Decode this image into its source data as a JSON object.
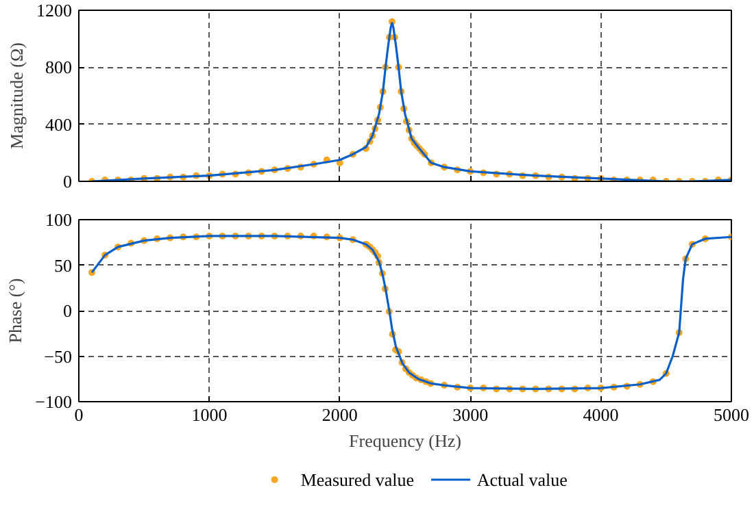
{
  "chart_data": [
    {
      "type": "scatter",
      "ylabel": "Magnitude (Ω)",
      "xlim": [
        0,
        5000
      ],
      "ylim": [
        0,
        1200
      ],
      "xticks": [
        0,
        1000,
        2000,
        3000,
        4000,
        5000
      ],
      "yticks": [
        0,
        400,
        800,
        1200
      ],
      "grid": true,
      "tick_labels": "y",
      "series": [
        {
          "marker": "circle",
          "color": "#f5a623",
          "x": [
            100,
            200,
            300,
            400,
            500,
            600,
            700,
            800,
            900,
            1000,
            1100,
            1200,
            1300,
            1400,
            1500,
            1600,
            1700,
            1800,
            1900,
            2000,
            2100,
            2200,
            2230,
            2250,
            2270,
            2290,
            2310,
            2330,
            2350,
            2380,
            2400,
            2420,
            2450,
            2470,
            2490,
            2510,
            2530,
            2550,
            2570,
            2590,
            2610,
            2630,
            2650,
            2700,
            2800,
            2900,
            3000,
            3100,
            3200,
            3300,
            3400,
            3500,
            3600,
            3700,
            3800,
            3900,
            4000,
            4100,
            4200,
            4300,
            4400,
            4500,
            4600,
            4700,
            4800,
            4900,
            5000
          ],
          "values": [
            0,
            10,
            10,
            10,
            20,
            20,
            30,
            30,
            40,
            40,
            50,
            50,
            60,
            70,
            80,
            90,
            100,
            120,
            150,
            130,
            190,
            230,
            280,
            320,
            370,
            430,
            520,
            630,
            800,
            1010,
            1120,
            1010,
            800,
            630,
            510,
            420,
            360,
            300,
            270,
            250,
            230,
            210,
            190,
            130,
            100,
            80,
            70,
            60,
            50,
            50,
            40,
            40,
            30,
            30,
            20,
            20,
            20,
            10,
            10,
            10,
            10,
            0,
            0,
            0,
            0,
            10,
            10
          ]
        },
        {
          "type": "line",
          "marker": "none",
          "color": "#0a5fc8",
          "x": [
            100,
            500,
            1000,
            1500,
            1800,
            2000,
            2100,
            2200,
            2250,
            2300,
            2330,
            2350,
            2370,
            2390,
            2400,
            2410,
            2430,
            2450,
            2470,
            2500,
            2550,
            2600,
            2700,
            2800,
            3000,
            3500,
            4000,
            4500,
            4700,
            5000
          ],
          "values": [
            0,
            20,
            40,
            80,
            120,
            150,
            190,
            240,
            320,
            470,
            630,
            800,
            950,
            1080,
            1110,
            1080,
            950,
            800,
            630,
            470,
            300,
            240,
            130,
            100,
            70,
            40,
            20,
            0,
            0,
            10
          ]
        }
      ]
    },
    {
      "type": "scatter",
      "xlabel": "Frequency (Hz)",
      "ylabel": "Phase (°)",
      "xlim": [
        0,
        5000
      ],
      "ylim": [
        -100,
        100
      ],
      "xticks": [
        0,
        1000,
        2000,
        3000,
        4000,
        5000
      ],
      "yticks": [
        {
          "value": -100,
          "label": "−100"
        },
        {
          "value": -50,
          "label": "−50"
        },
        0,
        50,
        100
      ],
      "grid": true,
      "legend": "bottom",
      "series": [
        {
          "name": "Measured value",
          "marker": "circle",
          "color": "#f5a623",
          "x": [
            100,
            200,
            300,
            400,
            500,
            600,
            700,
            800,
            900,
            1000,
            1100,
            1200,
            1300,
            1400,
            1500,
            1600,
            1700,
            1800,
            1900,
            2000,
            2100,
            2200,
            2210,
            2230,
            2250,
            2270,
            2290,
            2300,
            2326,
            2347,
            2378,
            2403,
            2427,
            2450,
            2476,
            2505,
            2531,
            2557,
            2586,
            2622,
            2659,
            2695,
            2800,
            2900,
            3000,
            3100,
            3200,
            3300,
            3400,
            3500,
            3600,
            3700,
            3800,
            3900,
            4000,
            4100,
            4200,
            4300,
            4400,
            4500,
            4600,
            4650,
            4700,
            4800,
            5000
          ],
          "values": [
            42,
            61,
            70,
            74,
            77,
            79,
            80,
            81,
            81,
            82,
            82,
            82,
            82,
            82,
            82,
            82,
            82,
            82,
            81,
            80,
            78,
            73,
            72,
            70,
            67,
            64,
            60,
            53,
            41,
            24,
            -1,
            -26,
            -43,
            -45,
            -57,
            -64,
            -68,
            -71,
            -74,
            -76,
            -78,
            -80,
            -82,
            -84,
            -85,
            -85,
            -86,
            -86,
            -86,
            -86,
            -86,
            -86,
            -86,
            -85,
            -85,
            -84,
            -83,
            -81,
            -78,
            -69,
            -24,
            57,
            73,
            79,
            81
          ]
        },
        {
          "type": "line",
          "marker": "none",
          "name": "Actual value",
          "color": "#0a5fc8",
          "x": [
            100,
            200,
            300,
            500,
            700,
            1000,
            1500,
            2000,
            2100,
            2200,
            2250,
            2300,
            2330,
            2350,
            2380,
            2400,
            2430,
            2450,
            2480,
            2530,
            2600,
            2700,
            2800,
            3000,
            3500,
            4000,
            4300,
            4450,
            4500,
            4550,
            4600,
            4630,
            4650,
            4700,
            4800,
            5000
          ],
          "values": [
            42,
            61,
            70,
            77,
            80,
            82,
            82,
            80,
            78,
            73,
            67,
            54,
            38,
            24,
            -1,
            -20,
            -40,
            -47,
            -58,
            -68,
            -75,
            -80,
            -82,
            -85,
            -86,
            -85,
            -81,
            -76,
            -69,
            -50,
            -24,
            35,
            57,
            73,
            79,
            81
          ]
        }
      ]
    }
  ]
}
